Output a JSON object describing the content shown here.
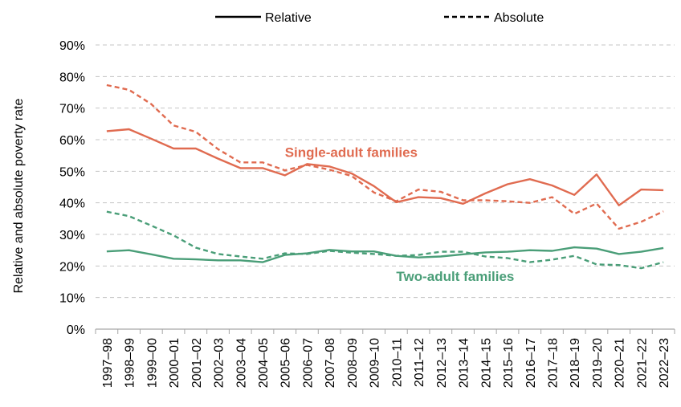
{
  "chart_data": {
    "type": "line",
    "title": "",
    "xlabel": "",
    "ylabel": "Relative and absolute poverty rate",
    "ylim": [
      0,
      90
    ],
    "yticks": [
      0,
      10,
      20,
      30,
      40,
      50,
      60,
      70,
      80,
      90
    ],
    "yticklabels": [
      "0%",
      "10%",
      "20%",
      "30%",
      "40%",
      "50%",
      "60%",
      "70%",
      "80%",
      "90%"
    ],
    "grid": true,
    "legend_position": "top",
    "legend": [
      {
        "label": "Relative",
        "style": "solid"
      },
      {
        "label": "Absolute",
        "style": "dashed"
      }
    ],
    "categories": [
      "1997–98",
      "1998–99",
      "1999–00",
      "2000–01",
      "2001–02",
      "2002–03",
      "2003–04",
      "2004–05",
      "2005–06",
      "2006–07",
      "2007–08",
      "2008–09",
      "2009–10",
      "2010–11",
      "2011–12",
      "2012–13",
      "2013–14",
      "2014–15",
      "2015–16",
      "2016–17",
      "2017–18",
      "2018–19",
      "2019–20",
      "2020–21",
      "2021–22",
      "2022–23"
    ],
    "series": [
      {
        "name": "Single-adult families – Relative",
        "group": "single",
        "style": "solid",
        "color": "#e06b50",
        "values": [
          62.7,
          63.3,
          60.3,
          57.2,
          57.2,
          54.0,
          51.0,
          51.0,
          48.7,
          52.3,
          51.5,
          49.3,
          45.3,
          40.2,
          41.8,
          41.5,
          39.7,
          43.0,
          45.9,
          47.5,
          45.5,
          42.5,
          49.0,
          39.2,
          44.2,
          44.0
        ]
      },
      {
        "name": "Single-adult families – Absolute",
        "group": "single",
        "style": "dashed",
        "color": "#e06b50",
        "values": [
          77.3,
          75.8,
          71.3,
          64.5,
          62.5,
          57.0,
          52.8,
          52.8,
          50.3,
          52.0,
          50.5,
          48.5,
          43.3,
          40.5,
          44.2,
          43.5,
          40.8,
          40.8,
          40.5,
          40.0,
          41.8,
          36.5,
          39.8,
          31.8,
          34.0,
          37.3
        ]
      },
      {
        "name": "Two-adult families – Relative",
        "group": "two",
        "style": "solid",
        "color": "#4a9e78",
        "values": [
          24.6,
          25.0,
          23.7,
          22.3,
          22.1,
          21.8,
          21.8,
          21.2,
          23.5,
          24.0,
          25.1,
          24.6,
          24.6,
          23.2,
          22.7,
          23.0,
          23.7,
          24.3,
          24.5,
          25.0,
          24.8,
          25.9,
          25.5,
          23.8,
          24.5,
          25.7
        ]
      },
      {
        "name": "Two-adult families – Absolute",
        "group": "two",
        "style": "dashed",
        "color": "#4a9e78",
        "values": [
          37.2,
          35.8,
          32.8,
          29.7,
          25.8,
          23.8,
          23.0,
          22.3,
          24.0,
          23.8,
          24.8,
          24.2,
          23.8,
          23.2,
          23.5,
          24.5,
          24.5,
          23.0,
          22.5,
          21.2,
          22.0,
          23.2,
          20.5,
          20.3,
          19.3,
          21.2
        ]
      }
    ],
    "annotations": [
      {
        "text": "Single-adult families",
        "color": "#e06b50",
        "anchor_x": "2005–06",
        "anchor_y": 54.5
      },
      {
        "text": "Two-adult families",
        "color": "#4a9e78",
        "anchor_x": "2010–11",
        "anchor_y": 15.3
      }
    ]
  }
}
